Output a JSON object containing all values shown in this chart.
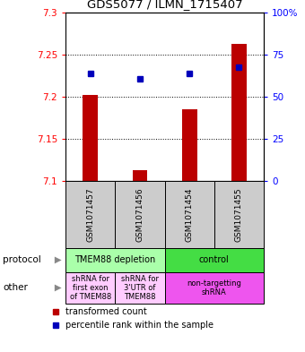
{
  "title": "GDS5077 / ILMN_1715407",
  "samples": [
    "GSM1071457",
    "GSM1071456",
    "GSM1071454",
    "GSM1071455"
  ],
  "bar_values": [
    7.202,
    7.113,
    7.185,
    7.263
  ],
  "bar_bottom": 7.1,
  "dot_values": [
    7.228,
    7.221,
    7.228,
    7.235
  ],
  "ylim": [
    7.1,
    7.3
  ],
  "y_ticks": [
    7.1,
    7.15,
    7.2,
    7.25,
    7.3
  ],
  "y_ticks_right": [
    0,
    25,
    50,
    75,
    100
  ],
  "y_ticks_right_labels": [
    "0",
    "25",
    "50",
    "75",
    "100%"
  ],
  "bar_color": "#bb0000",
  "dot_color": "#0000bb",
  "protocol_row": [
    {
      "label": "TMEM88 depletion",
      "span": [
        0,
        2
      ],
      "color": "#aaffaa"
    },
    {
      "label": "control",
      "span": [
        2,
        4
      ],
      "color": "#44dd44"
    }
  ],
  "other_row": [
    {
      "label": "shRNA for\nfirst exon\nof TMEM88",
      "span": [
        0,
        1
      ],
      "color": "#ffccff"
    },
    {
      "label": "shRNA for\n3'UTR of\nTMEM88",
      "span": [
        1,
        2
      ],
      "color": "#ffccff"
    },
    {
      "label": "non-targetting\nshRNA",
      "span": [
        2,
        4
      ],
      "color": "#ee55ee"
    }
  ],
  "legend_items": [
    {
      "label": "  transformed count",
      "color": "#bb0000"
    },
    {
      "label": "  percentile rank within the sample",
      "color": "#0000bb"
    }
  ],
  "row_labels": [
    "protocol",
    "other"
  ],
  "sample_bg_color": "#cccccc"
}
